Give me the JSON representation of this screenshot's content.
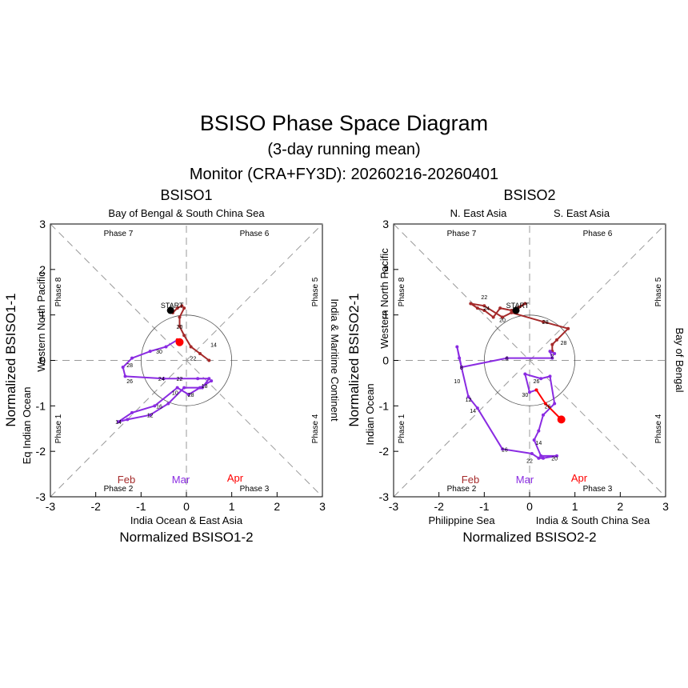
{
  "title": "BSISO Phase Space Diagram",
  "subtitle": "(3-day running mean)",
  "monitor": "Monitor (CRA+FY3D): 20260216-20260401",
  "months": [
    {
      "label": "Feb",
      "color": "#a52a2a"
    },
    {
      "label": "Mar",
      "color": "#8a2be2"
    },
    {
      "label": "Apr",
      "color": "#ff0000"
    }
  ],
  "start_label": "START",
  "ticks": [
    "-3",
    "-2",
    "-1",
    "0",
    "1",
    "2",
    "3"
  ],
  "colors": {
    "feb": "#a52a2a",
    "mar": "#8a2be2",
    "apr": "#ff0000",
    "axis": "#000000",
    "guide": "#999999"
  },
  "chart_data": [
    {
      "type": "scatter",
      "title": "BSISO1",
      "xlabel": "Normalized BSISO1-2",
      "ylabel": "Normalized BSISO1-1",
      "xlim": [
        -3,
        3
      ],
      "ylim": [
        3,
        -3
      ],
      "regions": {
        "top": "Bay of Bengal & South China Sea",
        "bottom": "India Ocean & East Asia",
        "left_outer": "Eq Indian Ocean",
        "left_inner": "Western North Pacific",
        "right": "India & Maritime Continent"
      },
      "phases": [
        "Phase 7",
        "Phase 6",
        "Phase 8",
        "Phase 5",
        "Phase 1",
        "Phase 4",
        "Phase 2",
        "Phase 3"
      ],
      "series": [
        {
          "name": "Feb",
          "color": "#a52a2a",
          "points": [
            {
              "x": -0.35,
              "y": 1.1
            },
            {
              "x": -0.3,
              "y": 1.05
            },
            {
              "x": -0.2,
              "y": 1.15
            },
            {
              "x": -0.1,
              "y": 1.2
            },
            {
              "x": -0.05,
              "y": 1.15
            },
            {
              "x": -0.15,
              "y": 0.95
            },
            {
              "x": -0.15,
              "y": 0.75
            },
            {
              "x": -0.05,
              "y": 0.55
            },
            {
              "x": 0.1,
              "y": 0.3
            },
            {
              "x": 0.3,
              "y": 0.15
            },
            {
              "x": 0.5,
              "y": 0.0
            }
          ]
        },
        {
          "name": "Mar",
          "color": "#8a2be2",
          "points": [
            {
              "x": 0.55,
              "y": -0.45
            },
            {
              "x": 0.3,
              "y": -0.6
            },
            {
              "x": 0.05,
              "y": -0.75
            },
            {
              "x": -0.2,
              "y": -0.6
            },
            {
              "x": -0.7,
              "y": -1.0
            },
            {
              "x": -1.2,
              "y": -1.15
            },
            {
              "x": -1.5,
              "y": -1.35
            },
            {
              "x": -1.3,
              "y": -1.3
            },
            {
              "x": -0.8,
              "y": -1.2
            },
            {
              "x": -0.4,
              "y": -0.95
            },
            {
              "x": -0.05,
              "y": -0.6
            },
            {
              "x": 0.35,
              "y": -0.6
            },
            {
              "x": 0.5,
              "y": -0.4
            },
            {
              "x": 0.25,
              "y": -0.4
            },
            {
              "x": -0.5,
              "y": -0.4
            },
            {
              "x": -1.35,
              "y": -0.35
            },
            {
              "x": -1.4,
              "y": -0.15
            },
            {
              "x": -1.2,
              "y": 0.05
            },
            {
              "x": -0.8,
              "y": 0.2
            },
            {
              "x": -0.45,
              "y": 0.3
            },
            {
              "x": -0.2,
              "y": 0.45
            }
          ]
        },
        {
          "name": "Apr",
          "color": "#ff0000",
          "points": [
            {
              "x": -0.2,
              "y": 0.45
            },
            {
              "x": -0.15,
              "y": 0.4
            }
          ]
        }
      ],
      "day_labels": [
        {
          "day": "20",
          "x": -0.15,
          "y": 0.75
        },
        {
          "x": 0.6,
          "y": 0.35,
          "day": "14"
        },
        {
          "day": "22",
          "x": 0.15,
          "y": 0.05
        },
        {
          "day": "28",
          "x": 0.1,
          "y": -0.75
        },
        {
          "day": "18",
          "x": 0.4,
          "y": -0.55
        },
        {
          "day": "10",
          "x": -0.25,
          "y": -0.7
        },
        {
          "day": "14",
          "x": -1.5,
          "y": -1.35
        },
        {
          "day": "12",
          "x": -0.8,
          "y": -1.2
        },
        {
          "day": "16",
          "x": -0.6,
          "y": -1.0
        },
        {
          "day": "24",
          "x": -0.55,
          "y": -0.4
        },
        {
          "day": "22",
          "x": -0.15,
          "y": -0.4
        },
        {
          "day": "26",
          "x": -1.25,
          "y": -0.45
        },
        {
          "day": "28",
          "x": -1.25,
          "y": -0.1
        },
        {
          "day": "30",
          "x": -0.6,
          "y": 0.2
        }
      ]
    },
    {
      "type": "scatter",
      "title": "BSISO2",
      "xlabel": "Normalized BSISO2-2",
      "ylabel": "Normalized BSISO2-1",
      "xlim": [
        -3,
        3
      ],
      "ylim": [
        3,
        -3
      ],
      "regions": {
        "top_left": "N. East Asia",
        "top_right": "S. East Asia",
        "bottom_left": "Philippine Sea",
        "bottom_right": "India & South China Sea",
        "left_outer": "Indian Ocean",
        "left_inner": "Western North Pacific",
        "right": "Bay of Bengal"
      },
      "phases": [
        "Phase 7",
        "Phase 6",
        "Phase 8",
        "Phase 5",
        "Phase 1",
        "Phase 4",
        "Phase 2",
        "Phase 3"
      ],
      "series": [
        {
          "name": "Feb",
          "color": "#a52a2a",
          "points": [
            {
              "x": -0.3,
              "y": 1.1
            },
            {
              "x": -0.1,
              "y": 1.25
            },
            {
              "x": -0.4,
              "y": 1.1
            },
            {
              "x": -0.65,
              "y": 1.15
            },
            {
              "x": -0.8,
              "y": 0.95
            },
            {
              "x": -1.0,
              "y": 1.1
            },
            {
              "x": -1.15,
              "y": 1.15
            },
            {
              "x": -1.3,
              "y": 1.25
            },
            {
              "x": -1.0,
              "y": 1.2
            },
            {
              "x": -0.6,
              "y": 0.95
            },
            {
              "x": -0.4,
              "y": 1.05
            },
            {
              "x": 0.3,
              "y": 0.85
            },
            {
              "x": 0.85,
              "y": 0.7
            },
            {
              "x": 0.6,
              "y": 0.45
            },
            {
              "x": 0.5,
              "y": 0.35
            },
            {
              "x": 0.5,
              "y": 0.2
            }
          ]
        },
        {
          "name": "Mar",
          "color": "#8a2be2",
          "points": [
            {
              "x": 0.55,
              "y": 0.15
            },
            {
              "x": 0.45,
              "y": 0.2
            },
            {
              "x": 0.5,
              "y": 0.05
            },
            {
              "x": -0.5,
              "y": 0.05
            },
            {
              "x": -1.5,
              "y": -0.15
            },
            {
              "x": -1.6,
              "y": 0.3
            },
            {
              "x": -1.55,
              "y": 0.05
            },
            {
              "x": -1.35,
              "y": -0.8
            },
            {
              "x": -1.15,
              "y": -1.05
            },
            {
              "x": -0.6,
              "y": -1.95
            },
            {
              "x": 0.05,
              "y": -2.05
            },
            {
              "x": 0.2,
              "y": -2.15
            },
            {
              "x": 0.3,
              "y": -2.15
            },
            {
              "x": 0.6,
              "y": -2.1
            },
            {
              "x": 0.25,
              "y": -2.1
            },
            {
              "x": 0.1,
              "y": -1.75
            },
            {
              "x": 0.2,
              "y": -1.55
            },
            {
              "x": 0.3,
              "y": -1.2
            },
            {
              "x": 0.55,
              "y": -0.95
            },
            {
              "x": 0.45,
              "y": -0.35
            },
            {
              "x": 0.25,
              "y": -0.4
            },
            {
              "x": -0.1,
              "y": -0.3
            },
            {
              "x": 0.0,
              "y": -0.7
            },
            {
              "x": 0.15,
              "y": -0.65
            }
          ]
        },
        {
          "name": "Apr",
          "color": "#ff0000",
          "points": [
            {
              "x": 0.15,
              "y": -0.65
            },
            {
              "x": 0.35,
              "y": -0.95
            },
            {
              "x": 0.7,
              "y": -1.3
            }
          ]
        }
      ],
      "day_labels": [
        {
          "day": "22",
          "x": -1.0,
          "y": 1.4
        },
        {
          "day": "24",
          "x": -0.95,
          "y": 1.15
        },
        {
          "day": "20",
          "x": -0.6,
          "y": 0.9
        },
        {
          "day": "28",
          "x": 0.35,
          "y": 0.85
        },
        {
          "day": "28",
          "x": 0.75,
          "y": 0.4
        },
        {
          "day": "2",
          "x": 0.5,
          "y": 0.1
        },
        {
          "day": "6",
          "x": -0.5,
          "y": 0.05
        },
        {
          "day": "8",
          "x": -1.5,
          "y": -0.15
        },
        {
          "day": "10",
          "x": -1.6,
          "y": -0.45
        },
        {
          "day": "12",
          "x": -1.35,
          "y": -0.85
        },
        {
          "day": "14",
          "x": -1.25,
          "y": -1.1
        },
        {
          "day": "16",
          "x": -0.55,
          "y": -1.95
        },
        {
          "day": "22",
          "x": 0.0,
          "y": -2.2
        },
        {
          "day": "20",
          "x": 0.55,
          "y": -2.15
        },
        {
          "day": "14",
          "x": 0.2,
          "y": -1.8
        },
        {
          "day": "26",
          "x": 0.4,
          "y": -1.0
        },
        {
          "day": "30",
          "x": -0.1,
          "y": -0.75
        },
        {
          "day": "26",
          "x": 0.15,
          "y": -0.45
        }
      ]
    }
  ]
}
